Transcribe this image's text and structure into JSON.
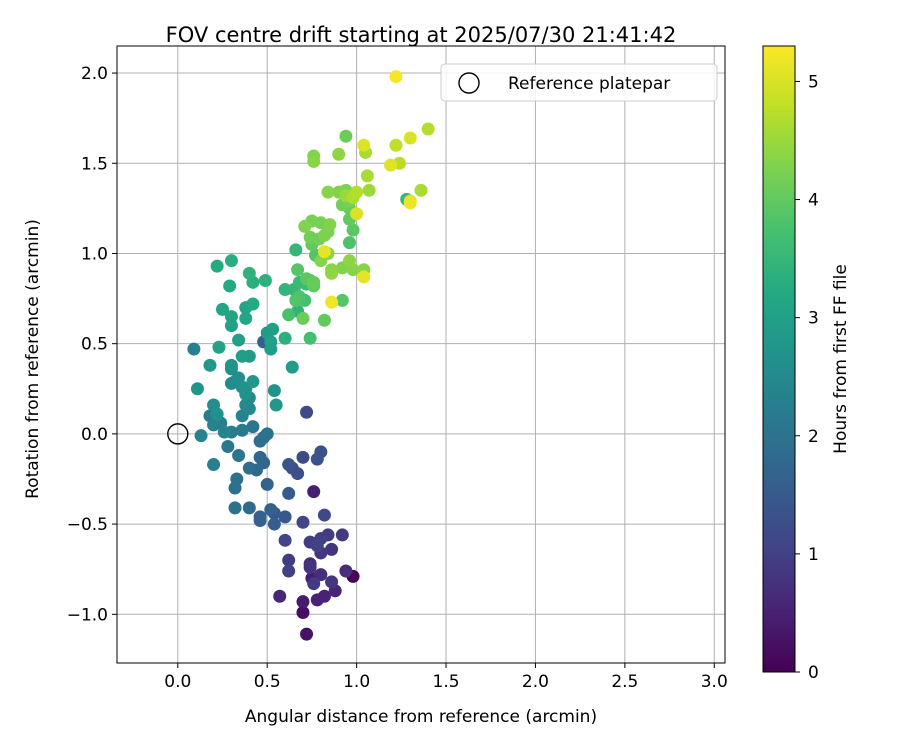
{
  "chart_data": {
    "type": "scatter",
    "title": "FOV centre drift starting at 2025/07/30 21:41:42",
    "xlabel": "Angular distance from reference (arcmin)",
    "ylabel": "Rotation from reference (arcmin)",
    "xlim": [
      -0.34,
      3.06
    ],
    "ylim": [
      -1.27,
      2.15
    ],
    "xticks": [
      0.0,
      0.5,
      1.0,
      1.5,
      2.0,
      2.5,
      3.0
    ],
    "xtick_labels": [
      "0.0",
      "0.5",
      "1.0",
      "1.5",
      "2.0",
      "2.5",
      "3.0"
    ],
    "yticks": [
      -1.0,
      -0.5,
      0.0,
      0.5,
      1.0,
      1.5,
      2.0
    ],
    "ytick_labels": [
      "−1.0",
      "−0.5",
      "0.0",
      "0.5",
      "1.0",
      "1.5",
      "2.0"
    ],
    "grid": true,
    "legend": {
      "position": "top-right",
      "entries": [
        "Reference platepar"
      ]
    },
    "reference_point": {
      "x": 0.0,
      "y": 0.0,
      "label": "Reference platepar"
    },
    "colorbar": {
      "label": "Hours from first FF file",
      "colormap": "viridis",
      "range": [
        0,
        5.3
      ],
      "ticks": [
        0,
        1,
        2,
        3,
        4,
        5
      ],
      "tick_labels": [
        "0",
        "1",
        "2",
        "3",
        "4",
        "5"
      ]
    },
    "points": [
      [
        0.98,
        -0.79,
        0.05
      ],
      [
        0.7,
        -0.99,
        0.2
      ],
      [
        0.72,
        -1.11,
        0.25
      ],
      [
        0.75,
        -0.8,
        0.4
      ],
      [
        0.7,
        -0.93,
        0.4
      ],
      [
        0.78,
        -0.92,
        0.5
      ],
      [
        0.82,
        -0.9,
        0.5
      ],
      [
        0.88,
        -0.87,
        0.55
      ],
      [
        0.76,
        -0.32,
        0.45
      ],
      [
        0.57,
        -0.9,
        0.6
      ],
      [
        0.94,
        -0.76,
        0.7
      ],
      [
        0.8,
        -0.78,
        0.7
      ],
      [
        0.74,
        -0.72,
        0.7
      ],
      [
        0.86,
        -0.64,
        0.8
      ],
      [
        0.74,
        -0.74,
        0.8
      ],
      [
        0.8,
        -0.66,
        0.85
      ],
      [
        0.92,
        -0.56,
        0.9
      ],
      [
        0.84,
        -0.56,
        0.9
      ],
      [
        0.74,
        -0.6,
        0.95
      ],
      [
        0.62,
        -0.7,
        0.95
      ],
      [
        0.62,
        -0.76,
        1.0
      ],
      [
        0.6,
        -0.59,
        1.1
      ],
      [
        0.8,
        -0.58,
        1.0
      ],
      [
        0.7,
        -0.49,
        1.1
      ],
      [
        0.78,
        -0.62,
        1.05
      ],
      [
        0.86,
        -0.82,
        0.85
      ],
      [
        0.76,
        -0.83,
        0.9
      ],
      [
        0.82,
        -0.45,
        1.15
      ],
      [
        0.7,
        -0.13,
        1.2
      ],
      [
        0.72,
        0.12,
        1.2
      ],
      [
        0.64,
        -0.19,
        1.25
      ],
      [
        0.67,
        -0.22,
        1.3
      ],
      [
        0.8,
        -0.1,
        1.3
      ],
      [
        0.78,
        -0.14,
        1.35
      ],
      [
        0.62,
        -0.17,
        1.4
      ],
      [
        0.6,
        -0.46,
        1.45
      ],
      [
        0.62,
        -0.33,
        1.5
      ],
      [
        0.54,
        -0.5,
        1.55
      ],
      [
        0.54,
        -0.44,
        1.5
      ],
      [
        0.52,
        -0.42,
        1.6
      ],
      [
        0.46,
        -0.48,
        1.6
      ],
      [
        0.46,
        -0.46,
        1.65
      ],
      [
        0.5,
        -0.28,
        1.7
      ],
      [
        0.48,
        -0.16,
        1.7
      ],
      [
        0.44,
        -0.2,
        1.8
      ],
      [
        0.46,
        -0.13,
        1.75
      ],
      [
        0.48,
        -0.02,
        1.75
      ],
      [
        0.4,
        -0.41,
        1.85
      ],
      [
        0.4,
        -0.19,
        1.9
      ],
      [
        0.46,
        -0.04,
        1.9
      ],
      [
        0.33,
        -0.25,
        1.95
      ],
      [
        0.32,
        -0.3,
        1.95
      ],
      [
        0.32,
        -0.41,
        2.0
      ],
      [
        0.5,
        0.0,
        2.0
      ],
      [
        0.42,
        0.04,
        2.05
      ],
      [
        0.34,
        -0.12,
        2.05
      ],
      [
        0.28,
        -0.07,
        2.1
      ],
      [
        0.36,
        0.02,
        2.15
      ],
      [
        0.3,
        0.01,
        2.2
      ],
      [
        0.24,
        0.06,
        2.25
      ],
      [
        0.18,
        0.1,
        2.2
      ],
      [
        0.2,
        -0.17,
        2.3
      ],
      [
        0.13,
        -0.01,
        2.35
      ],
      [
        0.2,
        0.05,
        2.35
      ],
      [
        0.26,
        0.01,
        2.4
      ],
      [
        0.36,
        0.1,
        2.4
      ],
      [
        0.4,
        0.14,
        2.45
      ],
      [
        0.4,
        0.2,
        2.45
      ],
      [
        0.38,
        0.16,
        2.5
      ],
      [
        0.3,
        0.28,
        2.5
      ],
      [
        0.32,
        0.29,
        2.55
      ],
      [
        0.36,
        0.26,
        2.55
      ],
      [
        0.34,
        0.31,
        2.6
      ],
      [
        0.3,
        0.36,
        2.6
      ],
      [
        0.2,
        0.16,
        2.6
      ],
      [
        0.22,
        0.11,
        2.65
      ],
      [
        0.38,
        0.22,
        2.7
      ],
      [
        0.38,
        0.25,
        2.7
      ],
      [
        0.3,
        0.38,
        2.75
      ],
      [
        0.11,
        0.25,
        2.75
      ],
      [
        0.18,
        0.38,
        2.8
      ],
      [
        0.42,
        0.29,
        2.8
      ],
      [
        0.09,
        0.47,
        2.3
      ],
      [
        0.48,
        0.51,
        1.6
      ],
      [
        0.54,
        0.24,
        2.7
      ],
      [
        0.55,
        0.16,
        2.8
      ],
      [
        0.64,
        0.37,
        2.9
      ],
      [
        0.52,
        0.47,
        2.9
      ],
      [
        0.52,
        0.51,
        3.0
      ],
      [
        0.53,
        0.58,
        2.95
      ],
      [
        0.5,
        0.56,
        2.9
      ],
      [
        0.36,
        0.43,
        2.95
      ],
      [
        0.4,
        0.43,
        2.9
      ],
      [
        0.34,
        0.52,
        3.0
      ],
      [
        0.23,
        0.48,
        3.05
      ],
      [
        0.3,
        0.6,
        3.05
      ],
      [
        0.3,
        0.65,
        3.1
      ],
      [
        0.25,
        0.69,
        3.1
      ],
      [
        0.38,
        0.64,
        3.15
      ],
      [
        0.38,
        0.7,
        3.15
      ],
      [
        0.42,
        0.72,
        3.2
      ],
      [
        0.29,
        0.82,
        3.2
      ],
      [
        0.22,
        0.93,
        3.25
      ],
      [
        0.3,
        0.96,
        3.3
      ],
      [
        0.42,
        0.84,
        3.3
      ],
      [
        0.49,
        0.85,
        3.35
      ],
      [
        0.4,
        0.89,
        3.4
      ],
      [
        0.6,
        0.53,
        3.35
      ],
      [
        0.67,
        0.68,
        3.4
      ],
      [
        0.6,
        0.8,
        3.45
      ],
      [
        0.65,
        0.8,
        3.5
      ],
      [
        0.68,
        0.84,
        3.55
      ],
      [
        0.66,
        1.02,
        3.5
      ],
      [
        0.72,
        0.83,
        3.6
      ],
      [
        0.74,
        0.85,
        3.65
      ],
      [
        0.74,
        0.53,
        3.7
      ],
      [
        0.71,
        0.74,
        3.7
      ],
      [
        0.62,
        0.66,
        3.75
      ],
      [
        0.68,
        0.76,
        3.8
      ],
      [
        0.66,
        0.74,
        3.85
      ],
      [
        0.67,
        0.91,
        3.9
      ],
      [
        0.72,
        0.86,
        3.95
      ],
      [
        0.76,
        0.82,
        4.0
      ],
      [
        0.76,
        0.84,
        4.05
      ],
      [
        0.7,
        0.64,
        4.1
      ],
      [
        0.77,
        0.99,
        3.85
      ],
      [
        0.75,
        1.05,
        4.0
      ],
      [
        0.74,
        1.09,
        4.15
      ],
      [
        0.79,
        1.08,
        4.15
      ],
      [
        0.75,
        1.18,
        4.2
      ],
      [
        0.82,
        1.1,
        4.25
      ],
      [
        0.84,
        1.12,
        4.25
      ],
      [
        0.8,
        1.17,
        4.2
      ],
      [
        0.85,
        1.16,
        4.3
      ],
      [
        0.71,
        1.15,
        4.3
      ],
      [
        0.8,
        0.96,
        4.3
      ],
      [
        0.84,
        1.0,
        4.35
      ],
      [
        0.86,
        0.91,
        4.35
      ],
      [
        0.86,
        0.89,
        4.4
      ],
      [
        0.92,
        0.92,
        4.3
      ],
      [
        0.96,
        0.96,
        4.4
      ],
      [
        0.98,
        0.91,
        4.35
      ],
      [
        0.82,
        0.63,
        4.0
      ],
      [
        0.92,
        0.74,
        3.9
      ],
      [
        0.96,
        1.06,
        3.8
      ],
      [
        0.98,
        1.13,
        3.95
      ],
      [
        0.96,
        1.19,
        4.0
      ],
      [
        0.96,
        1.25,
        4.05
      ],
      [
        0.92,
        1.27,
        4.15
      ],
      [
        0.96,
        1.29,
        4.2
      ],
      [
        0.92,
        1.34,
        4.25
      ],
      [
        0.9,
        1.34,
        4.3
      ],
      [
        0.94,
        1.35,
        4.25
      ],
      [
        0.84,
        1.34,
        4.35
      ],
      [
        0.94,
        1.32,
        4.5
      ],
      [
        0.94,
        1.65,
        4.1
      ],
      [
        0.76,
        1.54,
        4.3
      ],
      [
        0.76,
        1.51,
        4.35
      ],
      [
        0.9,
        1.55,
        4.4
      ],
      [
        1.04,
        0.91,
        4.35
      ],
      [
        1.05,
        1.56,
        4.6
      ],
      [
        1.06,
        1.43,
        4.6
      ],
      [
        1.07,
        1.35,
        4.5
      ],
      [
        1.0,
        1.34,
        4.7
      ],
      [
        0.98,
        1.31,
        4.65
      ],
      [
        1.0,
        1.22,
        5.0
      ],
      [
        1.22,
        1.6,
        4.8
      ],
      [
        1.24,
        1.5,
        4.75
      ],
      [
        1.3,
        1.64,
        5.0
      ],
      [
        1.28,
        1.3,
        3.5
      ],
      [
        1.3,
        1.29,
        5.0
      ],
      [
        1.4,
        1.69,
        4.7
      ],
      [
        1.36,
        1.35,
        4.6
      ],
      [
        1.04,
        1.6,
        5.05
      ],
      [
        1.19,
        1.49,
        5.05
      ],
      [
        1.22,
        1.98,
        5.25
      ],
      [
        1.04,
        0.87,
        5.1
      ],
      [
        0.86,
        0.73,
        5.2
      ],
      [
        0.82,
        1.01,
        5.1
      ],
      [
        1.3,
        1.28,
        5.15
      ]
    ]
  }
}
